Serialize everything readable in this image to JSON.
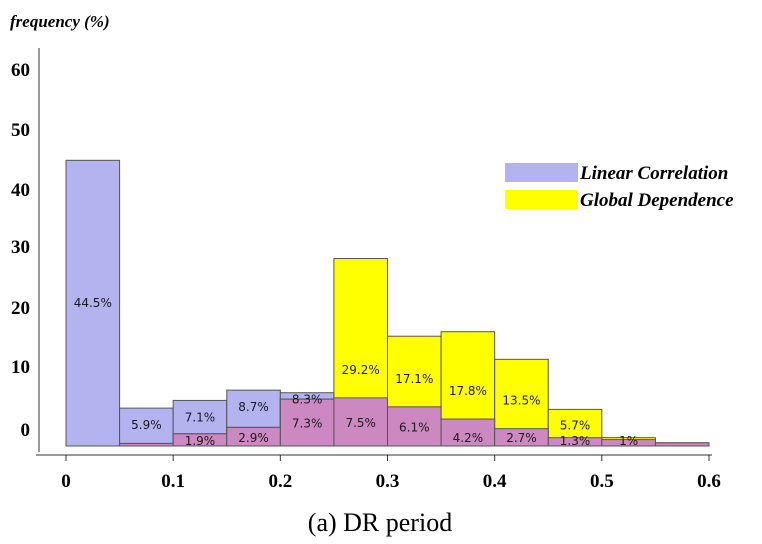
{
  "chart_data": {
    "type": "bar",
    "caption": "(a) DR period",
    "ylabel": "frequency (%)",
    "xlabel": "",
    "x_ticks": [
      "0",
      "0.1",
      "0.2",
      "0.3",
      "0.4",
      "0.5",
      "0.6"
    ],
    "y_ticks": [
      "0",
      "10",
      "20",
      "30",
      "40",
      "50",
      "60"
    ],
    "xlim": [
      0,
      0.6
    ],
    "ylim": [
      0,
      60
    ],
    "bin_width": 0.05,
    "legend_position": "top-right",
    "series": [
      {
        "name": "Linear Correlation",
        "color": "#b3b3ef",
        "bin_starts": [
          0,
          0.05,
          0.1,
          0.15,
          0.2
        ],
        "values": [
          44.5,
          5.9,
          7.1,
          8.7,
          8.3
        ],
        "labels": [
          "44.5%",
          "5.9%",
          "7.1%",
          "8.7%",
          "8.3%"
        ]
      },
      {
        "name": "Global Dependence",
        "color": "#ffff00",
        "bin_starts": [
          0.05,
          0.1,
          0.15,
          0.2,
          0.25,
          0.3,
          0.35,
          0.4,
          0.45,
          0.5,
          0.55
        ],
        "values": [
          0.4,
          1.9,
          2.9,
          7.3,
          29.2,
          17.1,
          17.8,
          13.5,
          5.7,
          1.3,
          0.5
        ],
        "labels": [
          "",
          "",
          "",
          "",
          "29.2%",
          "17.1%",
          "17.8%",
          "13.5%",
          "5.7%",
          "",
          ""
        ]
      }
    ],
    "overlap": {
      "name": "overlap",
      "color": "#cc88c0",
      "bin_starts": [
        0.05,
        0.1,
        0.15,
        0.2,
        0.25,
        0.3,
        0.35,
        0.4,
        0.45,
        0.5,
        0.55
      ],
      "values": [
        0.4,
        1.9,
        2.9,
        7.3,
        7.5,
        6.1,
        4.2,
        2.7,
        1.3,
        1,
        0.5
      ],
      "labels": [
        "",
        "1.9%",
        "2.9%",
        "7.3%",
        "7.5%",
        "6.1%",
        "4.2%",
        "2.7%",
        "1.3%",
        "1%",
        ""
      ]
    }
  }
}
